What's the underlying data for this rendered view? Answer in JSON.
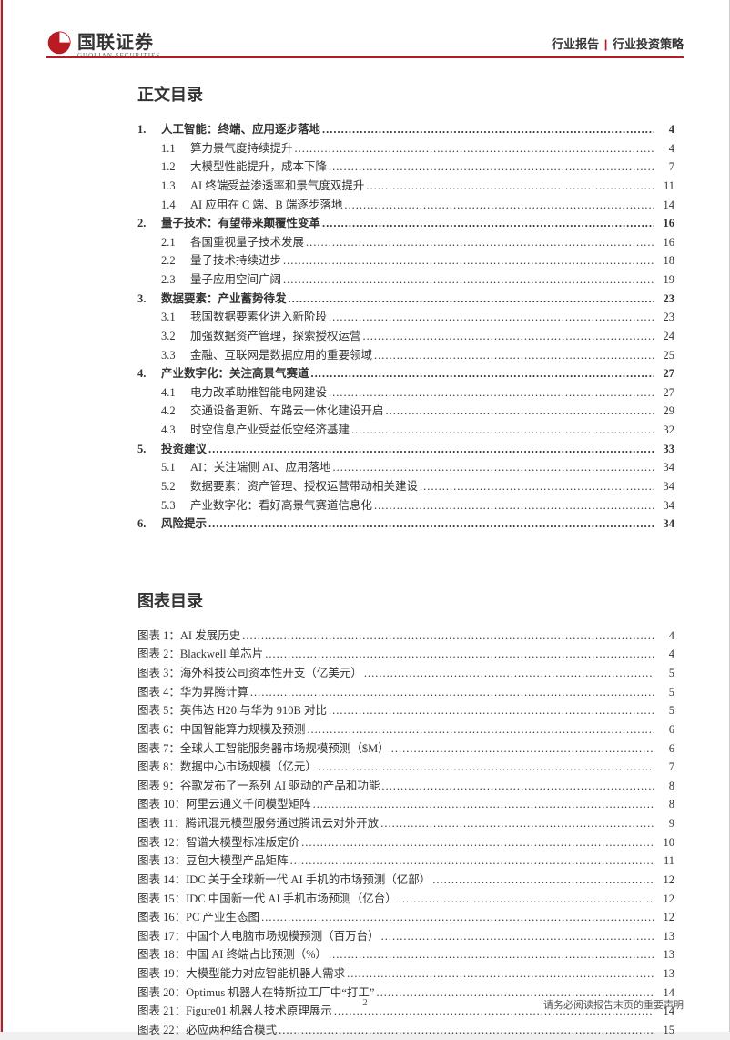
{
  "header": {
    "logo_cn": "国联证券",
    "logo_en": "GUOLIAN SECURITIES",
    "right_a": "行业报告",
    "right_b": "行业投资策略"
  },
  "toc_title": "正文目录",
  "toc": [
    {
      "num": "1.",
      "label": "人工智能：终端、应用逐步落地",
      "page": "4",
      "bold": true
    },
    {
      "num": "1.1",
      "label": "算力景气度持续提升",
      "page": "4",
      "sub": true
    },
    {
      "num": "1.2",
      "label": "大模型性能提升，成本下降",
      "page": "7",
      "sub": true
    },
    {
      "num": "1.3",
      "label": "AI 终端受益渗透率和景气度双提升",
      "page": "11",
      "sub": true
    },
    {
      "num": "1.4",
      "label": "AI 应用在 C 端、B 端逐步落地",
      "page": "14",
      "sub": true
    },
    {
      "num": "2.",
      "label": "量子技术：有望带来颠覆性变革",
      "page": "16",
      "bold": true
    },
    {
      "num": "2.1",
      "label": "各国重视量子技术发展",
      "page": "16",
      "sub": true
    },
    {
      "num": "2.2",
      "label": "量子技术持续进步",
      "page": "18",
      "sub": true
    },
    {
      "num": "2.3",
      "label": "量子应用空间广阔",
      "page": "19",
      "sub": true
    },
    {
      "num": "3.",
      "label": "数据要素：产业蓄势待发",
      "page": "23",
      "bold": true
    },
    {
      "num": "3.1",
      "label": "我国数据要素化进入新阶段",
      "page": "23",
      "sub": true
    },
    {
      "num": "3.2",
      "label": "加强数据资产管理，探索授权运营",
      "page": "24",
      "sub": true
    },
    {
      "num": "3.3",
      "label": "金融、互联网是数据应用的重要领域",
      "page": "25",
      "sub": true
    },
    {
      "num": "4.",
      "label": "产业数字化：关注高景气赛道",
      "page": "27",
      "bold": true
    },
    {
      "num": "4.1",
      "label": "电力改革助推智能电网建设",
      "page": "27",
      "sub": true
    },
    {
      "num": "4.2",
      "label": "交通设备更新、车路云一体化建设开启",
      "page": "29",
      "sub": true
    },
    {
      "num": "4.3",
      "label": "时空信息产业受益低空经济基建",
      "page": "32",
      "sub": true
    },
    {
      "num": "5.",
      "label": "投资建议",
      "page": "33",
      "bold": true
    },
    {
      "num": "5.1",
      "label": "AI：关注端侧 AI、应用落地",
      "page": "34",
      "sub": true
    },
    {
      "num": "5.2",
      "label": "数据要素：资产管理、授权运营带动相关建设",
      "page": "34",
      "sub": true
    },
    {
      "num": "5.3",
      "label": "产业数字化：看好高景气赛道信息化",
      "page": "34",
      "sub": true
    },
    {
      "num": "6.",
      "label": "风险提示",
      "page": "34",
      "bold": true
    }
  ],
  "fig_title": "图表目录",
  "figs": [
    {
      "num": "图表 1：",
      "label": "AI 发展历史",
      "page": "4"
    },
    {
      "num": "图表 2：",
      "label": "Blackwell 单芯片",
      "page": "4"
    },
    {
      "num": "图表 3：",
      "label": "海外科技公司资本性开支（亿美元）",
      "page": "5"
    },
    {
      "num": "图表 4：",
      "label": "华为昇腾计算",
      "page": "5"
    },
    {
      "num": "图表 5：",
      "label": "英伟达 H20 与华为 910B 对比",
      "page": "5"
    },
    {
      "num": "图表 6：",
      "label": "中国智能算力规模及预测",
      "page": "6"
    },
    {
      "num": "图表 7：",
      "label": "全球人工智能服务器市场规模预测（$M）",
      "page": "6"
    },
    {
      "num": "图表 8：",
      "label": "数据中心市场规模（亿元）",
      "page": "7"
    },
    {
      "num": "图表 9：",
      "label": "谷歌发布了一系列 AI 驱动的产品和功能",
      "page": "8"
    },
    {
      "num": "图表 10：",
      "label": "阿里云通义千问模型矩阵",
      "page": "8"
    },
    {
      "num": "图表 11：",
      "label": "腾讯混元模型服务通过腾讯云对外开放",
      "page": "9"
    },
    {
      "num": "图表 12：",
      "label": "智谱大模型标准版定价",
      "page": "10"
    },
    {
      "num": "图表 13：",
      "label": "豆包大模型产品矩阵",
      "page": "11"
    },
    {
      "num": "图表 14：",
      "label": "IDC 关于全球新一代 AI 手机的市场预测（亿部）",
      "page": "12"
    },
    {
      "num": "图表 15：",
      "label": "IDC 中国新一代 AI 手机市场预测（亿台）",
      "page": "12"
    },
    {
      "num": "图表 16：",
      "label": "PC 产业生态图",
      "page": "12"
    },
    {
      "num": "图表 17：",
      "label": "中国个人电脑市场规模预测（百万台）",
      "page": "13"
    },
    {
      "num": "图表 18：",
      "label": "中国 AI 终端占比预测（%）",
      "page": "13"
    },
    {
      "num": "图表 19：",
      "label": "大模型能力对应智能机器人需求",
      "page": "13"
    },
    {
      "num": "图表 20：",
      "label": "Optimus 机器人在特斯拉工厂中“打工”",
      "page": "14"
    },
    {
      "num": "图表 21：",
      "label": "Figure01 机器人技术原理展示",
      "page": "14"
    },
    {
      "num": "图表 22：",
      "label": "必应两种结合模式",
      "page": "15"
    }
  ],
  "footer": {
    "page_num": "2",
    "disclaimer": "请务必阅读报告末页的重要声明"
  }
}
